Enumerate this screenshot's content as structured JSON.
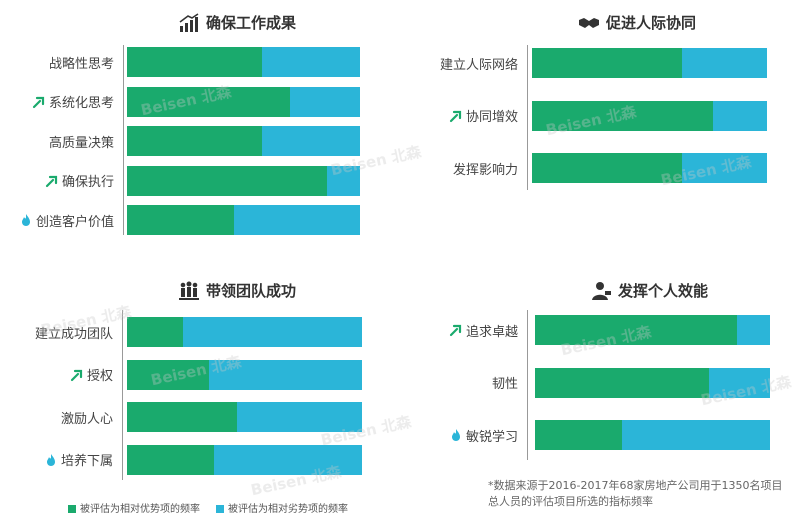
{
  "colors": {
    "strength": "#1aaa6d",
    "weakness": "#2bb5d8"
  },
  "watermark": "Beisen 北森",
  "legend": {
    "strength": "被评估为相对优势项的频率",
    "weakness": "被评估为相对劣势项的频率"
  },
  "footnote": "*数据来源于2016-2017年68家房地产公司用于1350名项目总人员的评估项目所选的指标频率",
  "chart_data": [
    {
      "type": "bar",
      "title": "确保工作成果",
      "title_icon": "bar-chart-up-icon",
      "categories": [
        "战略性思考",
        "系统化思考",
        "高质量决策",
        "确保执行",
        "创造客户价值"
      ],
      "category_icons": [
        "",
        "up-arrow-icon",
        "",
        "up-arrow-icon",
        "flame-icon"
      ],
      "series": [
        {
          "name": "被评估为相对优势项的频率",
          "values": [
            0.58,
            0.7,
            0.58,
            0.86,
            0.46
          ]
        },
        {
          "name": "被评估为相对劣势项的频率",
          "values": [
            0.42,
            0.3,
            0.42,
            0.14,
            0.54
          ]
        }
      ],
      "stacked": true
    },
    {
      "type": "bar",
      "title": "促进人际协同",
      "title_icon": "handshake-icon",
      "categories": [
        "建立人际网络",
        "协同增效",
        "发挥影响力"
      ],
      "category_icons": [
        "",
        "up-arrow-icon",
        ""
      ],
      "series": [
        {
          "name": "被评估为相对优势项的频率",
          "values": [
            0.64,
            0.77,
            0.64
          ]
        },
        {
          "name": "被评估为相对劣势项的频率",
          "values": [
            0.36,
            0.23,
            0.36
          ]
        }
      ],
      "stacked": true
    },
    {
      "type": "bar",
      "title": "带领团队成功",
      "title_icon": "team-icon",
      "categories": [
        "建立成功团队",
        "授权",
        "激励人心",
        "培养下属"
      ],
      "category_icons": [
        "",
        "up-arrow-icon",
        "",
        "flame-icon"
      ],
      "series": [
        {
          "name": "被评估为相对优势项的频率",
          "values": [
            0.24,
            0.35,
            0.47,
            0.37
          ]
        },
        {
          "name": "被评估为相对劣势项的频率",
          "values": [
            0.76,
            0.65,
            0.53,
            0.63
          ]
        }
      ],
      "stacked": true
    },
    {
      "type": "bar",
      "title": "发挥个人效能",
      "title_icon": "person-icon",
      "categories": [
        "追求卓越",
        "韧性",
        "敏锐学习"
      ],
      "category_icons": [
        "up-arrow-icon",
        "",
        "flame-icon"
      ],
      "series": [
        {
          "name": "被评估为相对优势项的频率",
          "values": [
            0.86,
            0.74,
            0.37
          ]
        },
        {
          "name": "被评估为相对劣势项的频率",
          "values": [
            0.14,
            0.26,
            0.63
          ]
        }
      ],
      "stacked": true
    }
  ]
}
